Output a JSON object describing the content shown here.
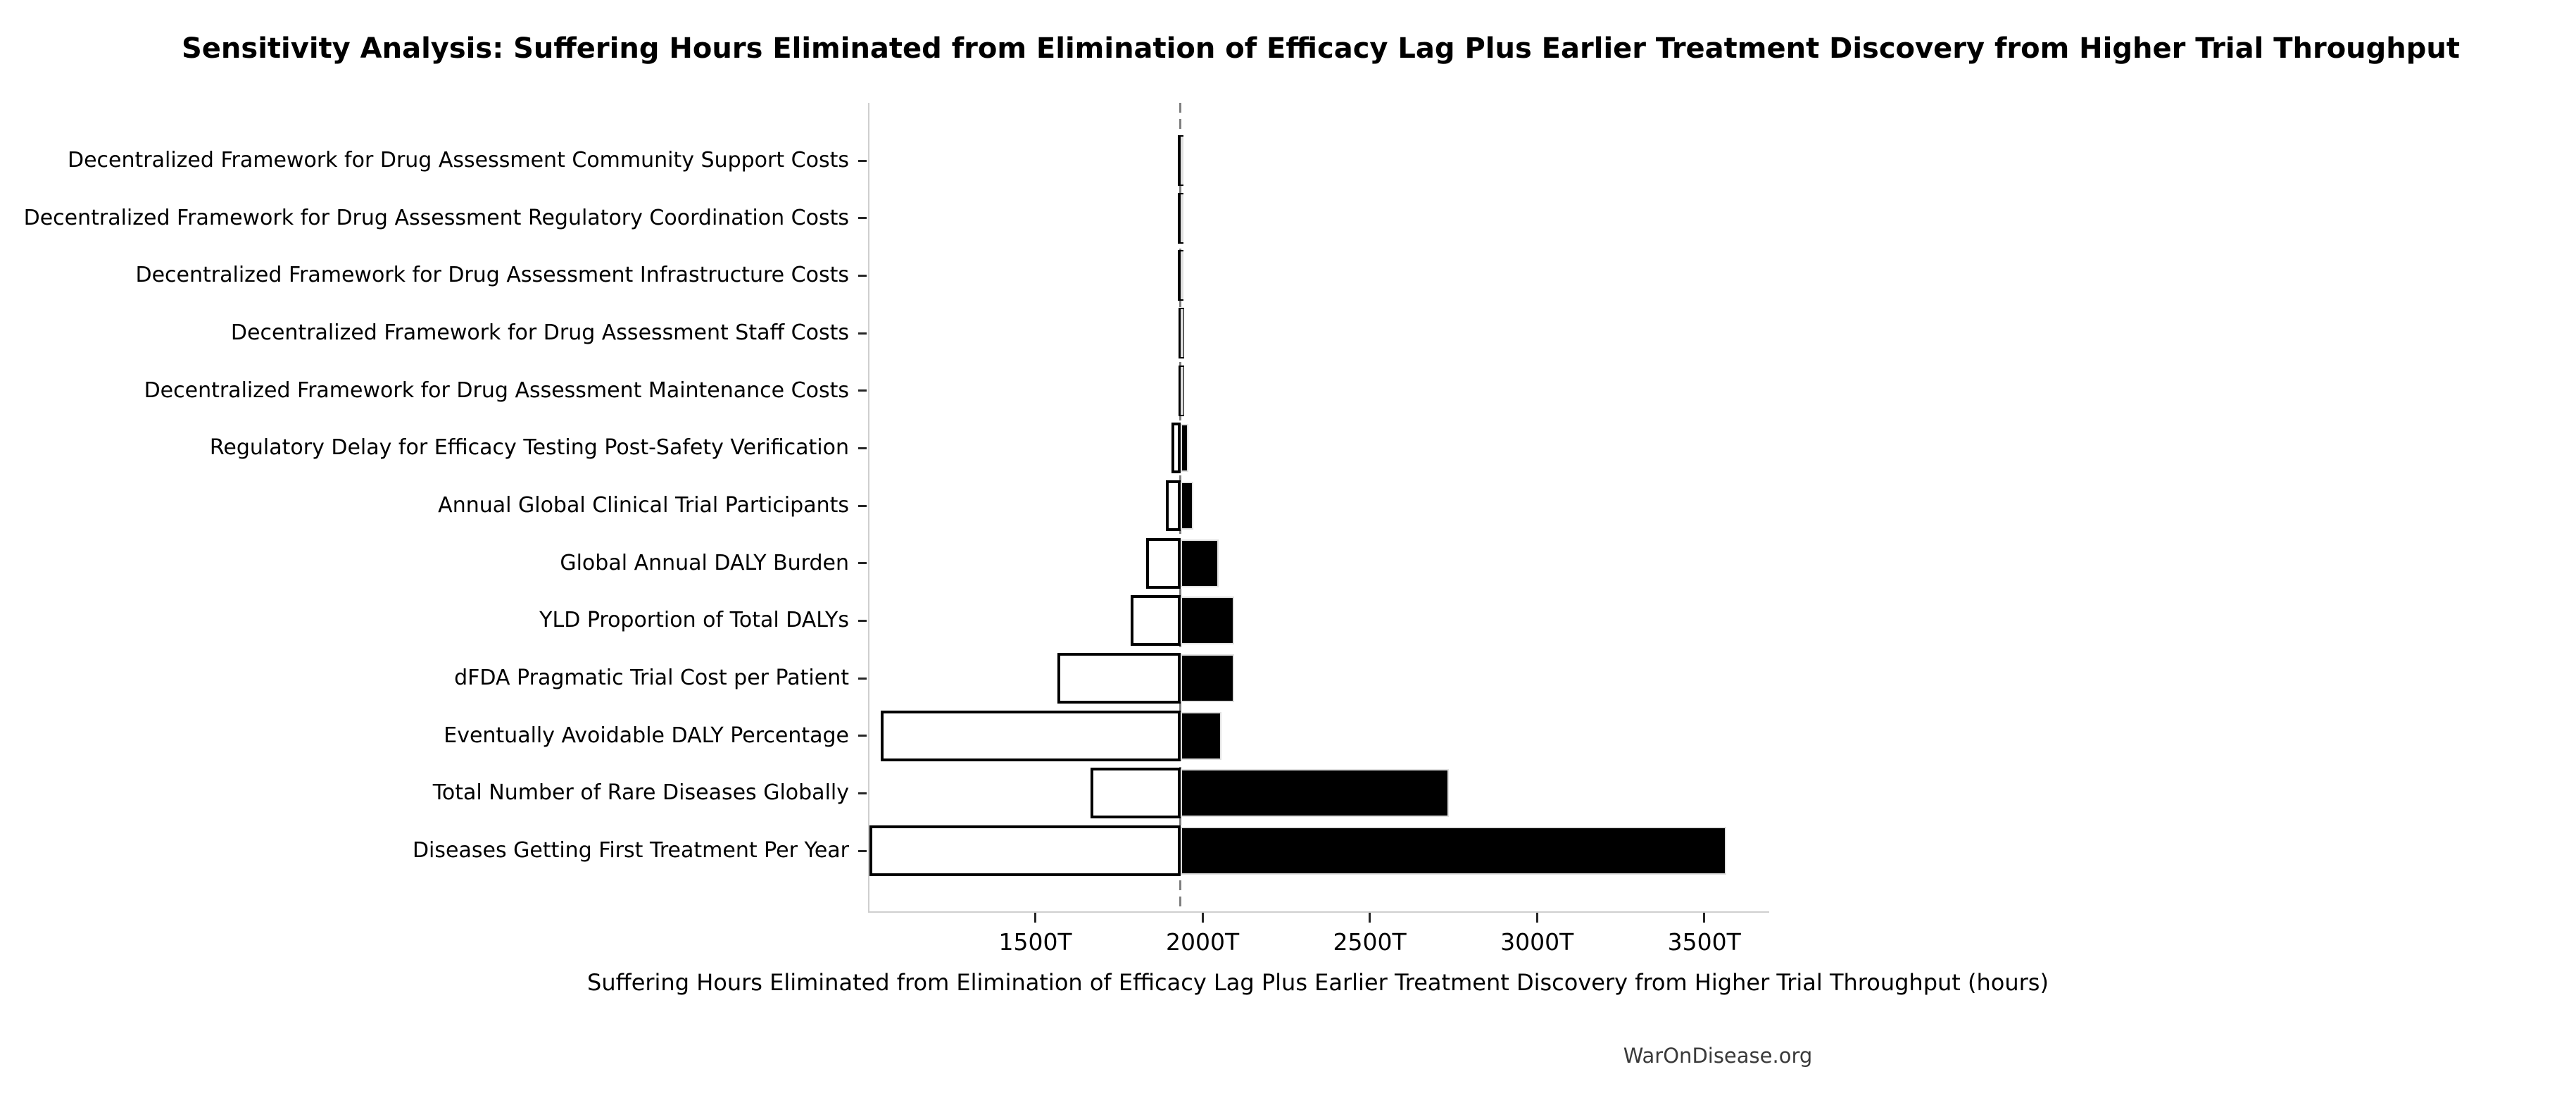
{
  "figure": {
    "background": "#ffffff"
  },
  "title": "Sensitivity Analysis: Suffering Hours Eliminated from Elimination of Efficacy Lag Plus Earlier Treatment Discovery from Higher Trial Throughput",
  "x_axis_label": "Suffering Hours Eliminated from Elimination of Efficacy Lag Plus Earlier Treatment Discovery from Higher Trial Throughput (hours)",
  "footer": "WarOnDisease.org",
  "colors": {
    "low_bar_fill": "#ffffff",
    "low_bar_edge": "#000000",
    "high_bar_fill": "#000000",
    "baseline_dash": "#7f7f7f",
    "spine": "#cfcfcf",
    "footer_text": "#3a3a3a"
  },
  "chart_data": {
    "type": "bar",
    "subtype": "tornado-horizontal",
    "title": "Sensitivity Analysis: Suffering Hours Eliminated from Elimination of Efficacy Lag Plus Earlier Treatment Discovery from Higher Trial Throughput",
    "xlabel": "Suffering Hours Eliminated from Elimination of Efficacy Lag Plus Earlier Treatment Discovery from Higher Trial Throughput (hours)",
    "ylabel": "",
    "unit_note": "T = trillions of hours (axis tick suffix)",
    "xlim": [
      1000,
      3690
    ],
    "x_ticks": [
      {
        "value": 1500,
        "label": "1500T"
      },
      {
        "value": 2000,
        "label": "2000T"
      },
      {
        "value": 2500,
        "label": "2500T"
      },
      {
        "value": 3000,
        "label": "3000T"
      },
      {
        "value": 3500,
        "label": "3500T"
      }
    ],
    "baseline_value": 1930,
    "grid": false,
    "legend_position": "none",
    "categories": [
      "Decentralized Framework for Drug Assessment Community Support Costs",
      "Decentralized Framework for Drug Assessment Regulatory Coordination Costs",
      "Decentralized Framework for Drug Assessment Infrastructure Costs",
      "Decentralized Framework for Drug Assessment Staff Costs",
      "Decentralized Framework for Drug Assessment Maintenance Costs",
      "Regulatory Delay for Efficacy Testing Post-Safety Verification",
      "Annual Global Clinical Trial Participants",
      "Global Annual DALY Burden",
      "YLD Proportion of Total DALYs",
      "dFDA Pragmatic Trial Cost per Patient",
      "Eventually Avoidable DALY Percentage",
      "Total Number of Rare Diseases Globally",
      "Diseases Getting First Treatment Per Year"
    ],
    "series": [
      {
        "name": "low_estimate_T",
        "values": [
          1922,
          1921,
          1922,
          1924,
          1925,
          1904,
          1887,
          1828,
          1780,
          1561,
          1033,
          1660,
          1000
        ]
      },
      {
        "name": "high_estimate_T",
        "values": [
          1938,
          1939,
          1938,
          1937,
          1936,
          1954,
          1969,
          2044,
          2090,
          2090,
          2052,
          2732,
          3562
        ]
      }
    ]
  }
}
